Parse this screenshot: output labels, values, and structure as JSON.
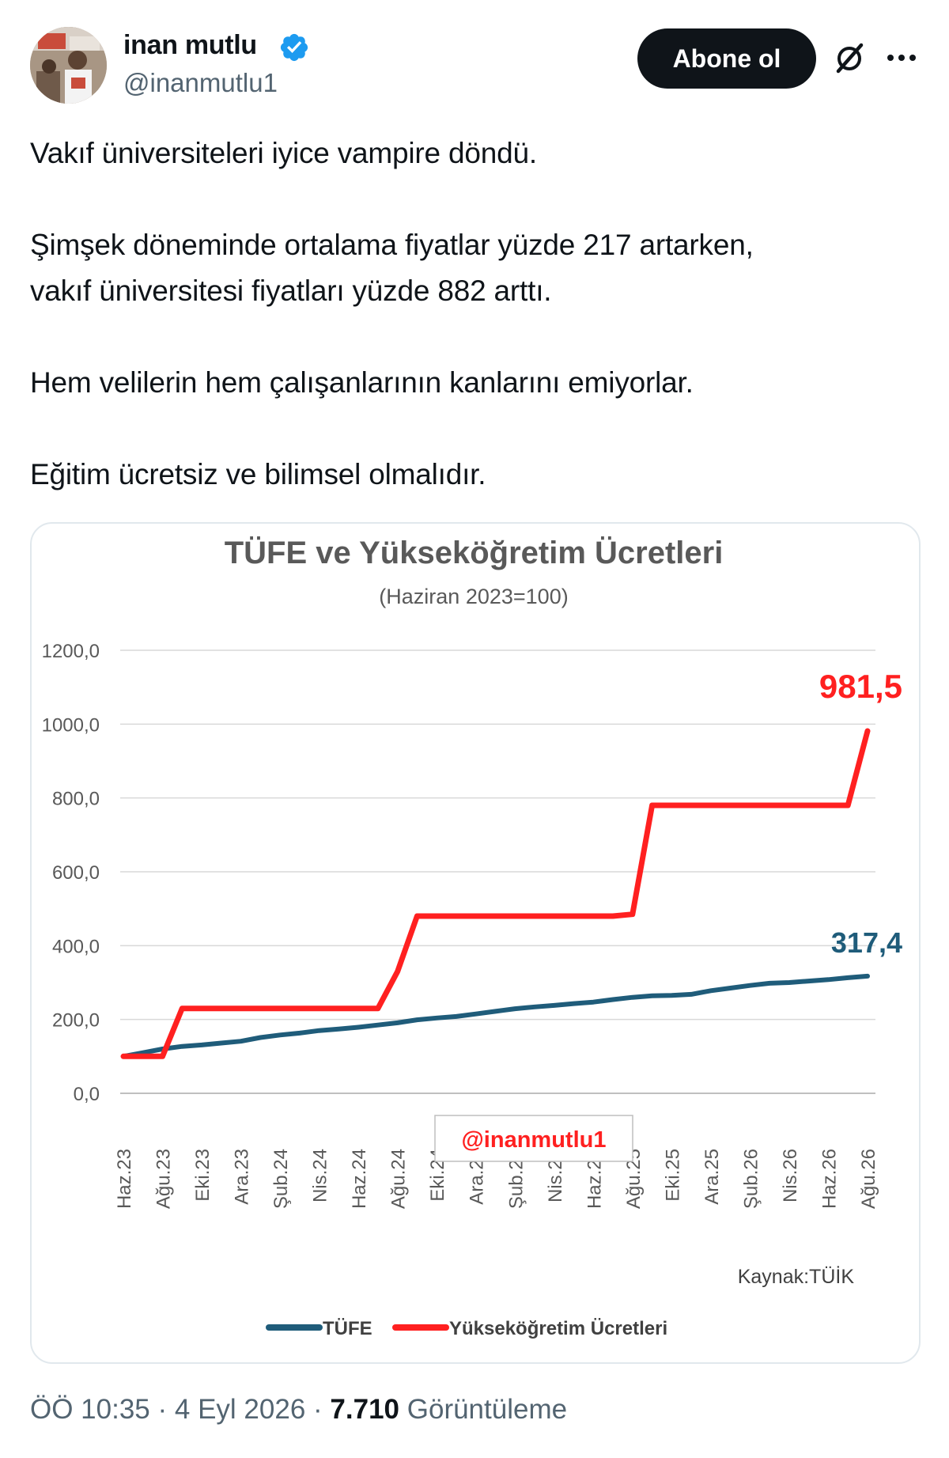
{
  "author": {
    "name": "inan mutlu",
    "handle": "@inanmutlu1",
    "verified": true,
    "avatar_icon": "profile-photo"
  },
  "actions": {
    "follow_label": "Abone ol",
    "grok_icon": "grok-icon",
    "more_icon": "more-options-icon"
  },
  "tweet": {
    "paragraphs": [
      "Vakıf üniversiteleri iyice vampire döndü.",
      "Şimşek döneminde ortalama fiyatlar yüzde 217 artarken,\nvakıf üniversitesi fiyatları yüzde 882 arttı.",
      "Hem velilerin hem çalışanlarının kanlarını emiyorlar.",
      "Eğitim ücretsiz ve bilimsel olmalıdır."
    ]
  },
  "chart_data": {
    "type": "line",
    "title": "TÜFE ve Yükseköğretim Ücretleri",
    "subtitle": "(Haziran 2023=100)",
    "ylim": [
      0,
      1200
    ],
    "yticks": [
      "1200,0",
      "1000,0",
      "800,0",
      "600,0",
      "400,0",
      "200,0",
      "0,0"
    ],
    "ytick_values": [
      1200,
      1000,
      800,
      600,
      400,
      200,
      0
    ],
    "grid": true,
    "x": [
      "Haz.23",
      "Tem.23",
      "Ağu.23",
      "Eyl.23",
      "Eki.23",
      "Kas.23",
      "Ara.23",
      "Oca.24",
      "Şub.24",
      "Mar.24",
      "Nis.24",
      "May.24",
      "Haz.24",
      "Tem.24",
      "Ağu.24",
      "Eyl.24",
      "Eki.24",
      "Kas.24",
      "Ara.24",
      "Oca.25",
      "Şub.25",
      "Mar.25",
      "Nis.25",
      "May.25",
      "Haz.25",
      "Tem.25",
      "Ağu.25",
      "Eyl.25",
      "Eki.25",
      "Kas.25",
      "Ara.25",
      "Oca.26",
      "Şub.26",
      "Mar.26",
      "Nis.26",
      "May.26",
      "Haz.26",
      "Tem.26",
      "Ağu.26"
    ],
    "xtick_labels": [
      "Haz.23",
      "Ağu.23",
      "Eki.23",
      "Ara.23",
      "Şub.24",
      "Nis.24",
      "Haz.24",
      "Ağu.24",
      "Eki.24",
      "Ara.24",
      "Şub.25",
      "Nis.25",
      "Haz.25",
      "Ağu.25",
      "Eki.25",
      "Ara.25",
      "Şub.26",
      "Nis.26",
      "Haz.26",
      "Ağu.26"
    ],
    "series": [
      {
        "name": "TÜFE",
        "color": "#1f5c7a",
        "values": [
          100,
          110,
          120,
          127,
          131,
          136,
          141,
          151,
          158,
          163,
          170,
          174,
          179,
          185,
          191,
          199,
          204,
          208,
          215,
          222,
          229,
          234,
          238,
          243,
          247,
          254,
          260,
          264,
          265,
          268,
          278,
          285,
          292,
          298,
          300,
          304,
          308,
          313,
          317.4
        ],
        "end_label": "317,4"
      },
      {
        "name": "Yükseköğretim Ücretleri",
        "color": "#ff2020",
        "values": [
          100,
          100,
          100,
          230,
          230,
          230,
          230,
          230,
          230,
          230,
          230,
          230,
          230,
          230,
          330,
          480,
          480,
          480,
          480,
          480,
          480,
          480,
          480,
          480,
          480,
          480,
          485,
          780,
          780,
          780,
          780,
          780,
          780,
          780,
          780,
          780,
          780,
          780,
          981.5
        ],
        "end_label": "981,5"
      }
    ],
    "watermark": "@inanmutlu1",
    "source": "Kaynak:TÜİK",
    "legend_position": "bottom"
  },
  "footer": {
    "time": "ÖÖ 10:35",
    "sep": "·",
    "date": "4 Eyl 2026",
    "views_count": "7.710",
    "views_label": "Görüntüleme"
  }
}
